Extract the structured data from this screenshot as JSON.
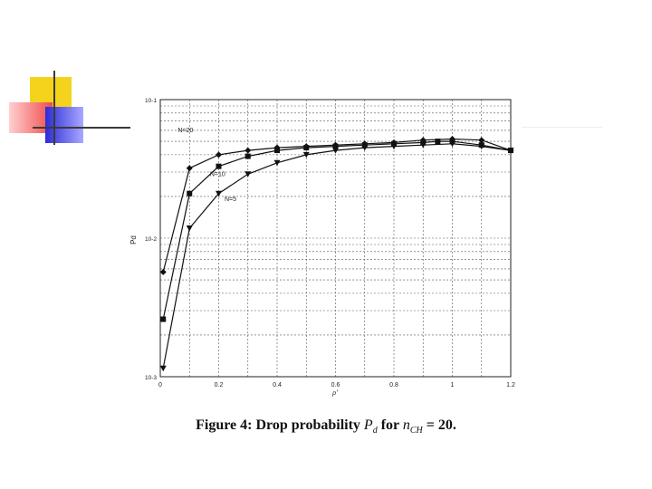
{
  "slide": {
    "caption": {
      "prefix": "Figure 4: Drop probability ",
      "pd_symbol": "P",
      "pd_sub": "d",
      "mid": " for ",
      "n_symbol": "n",
      "n_sub": "CH",
      "suffix": " = 20."
    },
    "accent_colors": {
      "yellow": "#f5d31c",
      "red": "#f04b4b",
      "blue": "#2c2cd8",
      "rule": "#3a3a3a"
    }
  },
  "chart_data": {
    "type": "line",
    "title": "",
    "xlabel": "ρ'",
    "ylabel": "Pd",
    "xlim": [
      0,
      1.2
    ],
    "ylim": [
      0.001,
      0.1
    ],
    "yscale": "log",
    "grid": true,
    "x_ticks": [
      "0",
      "0.2",
      "0.4",
      "0.6",
      "0.8",
      "1",
      "1.2"
    ],
    "y_ticks": [
      "10^-1",
      "10^-2",
      "10^-3"
    ],
    "series": [
      {
        "name": "N=20",
        "marker": "diamond",
        "x": [
          0.01,
          0.1,
          0.2,
          0.3,
          0.4,
          0.5,
          0.6,
          0.7,
          0.8,
          0.9,
          1.0,
          1.1,
          1.2
        ],
        "y": [
          0.0057,
          0.032,
          0.04,
          0.043,
          0.045,
          0.046,
          0.047,
          0.048,
          0.049,
          0.051,
          0.052,
          0.051,
          0.043
        ]
      },
      {
        "name": "N=10",
        "marker": "square",
        "x": [
          0.01,
          0.1,
          0.2,
          0.3,
          0.4,
          0.5,
          0.6,
          0.7,
          0.8,
          0.9,
          0.95,
          1.0,
          1.1,
          1.2
        ],
        "y": [
          0.0026,
          0.021,
          0.033,
          0.039,
          0.043,
          0.045,
          0.046,
          0.047,
          0.048,
          0.049,
          0.05,
          0.05,
          0.047,
          0.043
        ]
      },
      {
        "name": "N=5",
        "marker": "triangle",
        "x": [
          0.01,
          0.1,
          0.2,
          0.3,
          0.4,
          0.5,
          0.6,
          0.7,
          0.8,
          0.9,
          1.0,
          1.1,
          1.2
        ],
        "y": [
          0.00115,
          0.0118,
          0.021,
          0.029,
          0.035,
          0.04,
          0.043,
          0.045,
          0.046,
          0.047,
          0.048,
          0.046,
          0.043
        ]
      }
    ]
  }
}
